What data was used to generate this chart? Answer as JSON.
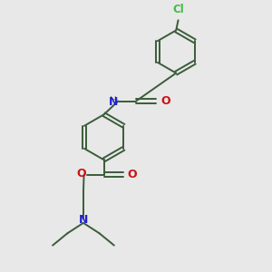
{
  "background_color": "#e8e8e8",
  "bond_color": "#3a5c3a",
  "N_color": "#2222cc",
  "O_color": "#cc1111",
  "Cl_color": "#44bb44",
  "figsize": [
    3.0,
    3.0
  ],
  "dpi": 100,
  "xlim": [
    0,
    10
  ],
  "ylim": [
    0,
    10
  ]
}
